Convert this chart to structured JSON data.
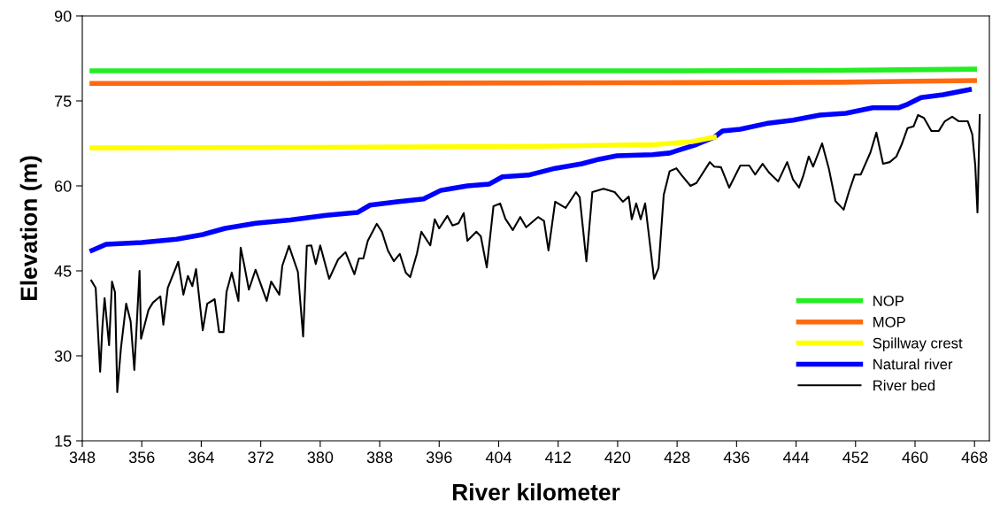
{
  "chart_data": {
    "type": "line",
    "xlabel": "River kilometer",
    "ylabel": "Elevation (m)",
    "xlim": [
      348,
      470
    ],
    "ylim": [
      15,
      90
    ],
    "xticks": [
      348,
      356,
      364,
      372,
      380,
      388,
      396,
      404,
      412,
      420,
      428,
      436,
      444,
      452,
      460,
      468
    ],
    "yticks": [
      15,
      30,
      45,
      60,
      75,
      90
    ],
    "grid": false,
    "legend": "bottom right",
    "marker": "none",
    "line_style": "solid",
    "series": [
      {
        "name": "NOP",
        "color": "#22ee22",
        "x": [
          349.3,
          380,
          420,
          450,
          468
        ],
        "values": [
          80.3,
          80.3,
          80.3,
          80.4,
          80.6
        ]
      },
      {
        "name": "MOP",
        "color": "#ff6a10",
        "x": [
          349.3,
          380,
          420,
          450,
          468
        ],
        "values": [
          78.1,
          78.1,
          78.2,
          78.3,
          78.6
        ]
      },
      {
        "name": "Spillway crest",
        "color": "#ffff00",
        "x": [
          349.3,
          380,
          410,
          425,
          430,
          433
        ],
        "values": [
          66.7,
          66.8,
          67.0,
          67.3,
          67.8,
          68.6
        ]
      },
      {
        "name": "Natural river",
        "color": "#0000ff",
        "x": [
          349.3,
          351.2,
          356,
          360.7,
          364.2,
          367.2,
          371.3,
          376,
          380.8,
          385,
          386.7,
          390.3,
          393.9,
          396.2,
          399.8,
          402.7,
          404.5,
          408,
          411.6,
          415.2,
          417.5,
          419.9,
          424.7,
          427,
          430.6,
          433,
          434.1,
          436.5,
          440,
          443.6,
          447.2,
          450.7,
          454.3,
          457.8,
          459,
          460.8,
          463.8,
          467.3
        ],
        "values": [
          48.6,
          49.7,
          50,
          50.6,
          51.4,
          52.5,
          53.4,
          54,
          54.8,
          55.3,
          56.6,
          57.2,
          57.7,
          59.2,
          60,
          60.3,
          61.6,
          61.9,
          63.1,
          63.9,
          64.7,
          65.3,
          65.5,
          65.8,
          67.3,
          68.6,
          69.7,
          70,
          71,
          71.6,
          72.5,
          72.8,
          73.8,
          73.8,
          74.4,
          75.6,
          76.1,
          77.0
        ]
      },
      {
        "name": "River bed",
        "color": "#000000",
        "x": [
          349.2,
          349.8,
          350.4,
          350.7,
          351.0,
          351.6,
          352.0,
          352.4,
          352.7,
          353.2,
          353.9,
          354.5,
          355.0,
          355.7,
          355.9,
          356.9,
          357.5,
          358.5,
          358.9,
          359.5,
          360.9,
          361.6,
          362.2,
          362.8,
          363.3,
          364.2,
          364.8,
          365.8,
          366.4,
          367.0,
          367.4,
          368.1,
          369.0,
          369.3,
          369.8,
          370.4,
          371.3,
          372.8,
          373.4,
          374.5,
          374.9,
          375.8,
          377.0,
          377.7,
          378.2,
          378.8,
          379.4,
          380.0,
          381.2,
          382.4,
          383.4,
          384.6,
          385.2,
          385.8,
          386.4,
          387.6,
          388.3,
          389.1,
          389.9,
          390.7,
          391.5,
          392.1,
          393.0,
          393.6,
          394.8,
          395.4,
          396.0,
          397.1,
          397.8,
          398.6,
          399.3,
          399.8,
          401.0,
          401.6,
          402.4,
          403.3,
          404.2,
          404.9,
          405.9,
          406.9,
          407.7,
          409.3,
          410.1,
          410.7,
          411.6,
          413.0,
          414.4,
          414.9,
          415.8,
          416.6,
          418.1,
          419.6,
          420.7,
          421.5,
          421.9,
          422.5,
          423.1,
          423.7,
          424.9,
          425.5,
          426.2,
          427.0,
          427.9,
          428.6,
          429.8,
          430.6,
          432.4,
          433.0,
          433.9,
          435.0,
          436.5,
          437.7,
          438.5,
          439.5,
          440.4,
          441.6,
          442.8,
          443.6,
          444.4,
          445.0,
          445.7,
          446.3,
          447.5,
          448.4,
          449.3,
          450.4,
          451.1,
          451.9,
          452.7,
          454.0,
          454.8,
          455.7,
          456.6,
          457.5,
          458.2,
          459.0,
          459.8,
          460.4,
          461.2,
          462.2,
          463.2,
          464.0,
          465.0,
          465.9,
          467.1,
          467.7,
          468.1,
          468.4,
          468.7
        ],
        "values": [
          43.3,
          42.0,
          27.2,
          35.0,
          40.2,
          31.9,
          43.1,
          41.2,
          23.6,
          31.4,
          39.2,
          36.1,
          27.5,
          45.0,
          33.0,
          38.1,
          39.4,
          40.5,
          35.5,
          42.0,
          46.6,
          40.8,
          44.1,
          42.3,
          45.3,
          34.5,
          39.2,
          40.0,
          34.2,
          34.2,
          41.3,
          44.7,
          39.7,
          49.1,
          45.9,
          41.7,
          45.2,
          39.7,
          43.1,
          40.8,
          45.9,
          49.4,
          44.8,
          33.4,
          49.4,
          49.5,
          46.2,
          49.5,
          43.6,
          47.0,
          48.3,
          44.4,
          47.2,
          47.2,
          50.3,
          53.3,
          51.9,
          48.6,
          46.7,
          48.0,
          44.7,
          43.9,
          48.0,
          51.9,
          49.5,
          54.1,
          52.5,
          54.7,
          53.0,
          53.4,
          55.2,
          50.3,
          51.9,
          51.1,
          45.6,
          56.4,
          56.9,
          54.2,
          52.2,
          54.5,
          52.7,
          54.5,
          53.8,
          48.6,
          57.2,
          56.1,
          58.9,
          58.0,
          46.7,
          58.9,
          59.5,
          58.9,
          57.2,
          58.1,
          54.1,
          56.9,
          54.1,
          56.9,
          43.6,
          45.5,
          58.4,
          62.6,
          63.1,
          61.9,
          60.0,
          60.5,
          64.2,
          63.4,
          63.3,
          59.7,
          63.6,
          63.6,
          62.0,
          63.9,
          62.3,
          60.8,
          64.2,
          61.1,
          59.7,
          61.9,
          65.2,
          63.4,
          67.5,
          63.1,
          57.3,
          55.8,
          58.9,
          62.0,
          62.0,
          65.9,
          69.4,
          63.9,
          64.2,
          65.2,
          67.3,
          70.2,
          70.5,
          72.5,
          72.0,
          69.7,
          69.7,
          71.4,
          72.2,
          71.4,
          71.4,
          69.1,
          63.6,
          55.3,
          72.5
        ]
      }
    ]
  }
}
